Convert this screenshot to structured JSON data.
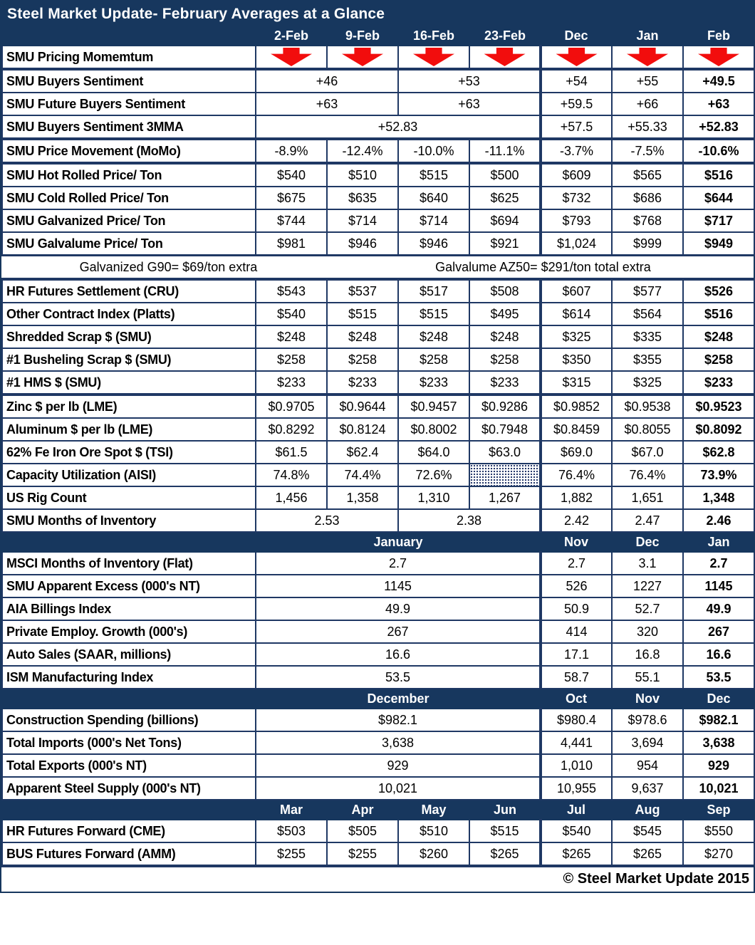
{
  "title": "Steel Market Update- February Averages at a Glance",
  "footer": "© Steel Market Update 2015",
  "colors": {
    "header_navy": "#17375E",
    "grid_border_navy": "#1F3864",
    "momentum_arrow_red": "#F20D0D",
    "text": "#000000",
    "background": "#FFFFFF"
  },
  "icons": {
    "momentum_arrow": "red-block-down-arrow"
  },
  "chart_data": {
    "type": "table",
    "title": "Steel Market Update- February Averages at a Glance",
    "weekly_columns": [
      "2-Feb",
      "9-Feb",
      "16-Feb",
      "23-Feb"
    ],
    "monthly_columns_top": [
      "Dec",
      "Jan",
      "Feb"
    ],
    "rows": [
      {
        "type": "months",
        "label": "",
        "cells": [
          {
            "v": "2-Feb"
          },
          {
            "v": "9-Feb"
          },
          {
            "v": "16-Feb"
          },
          {
            "v": "23-Feb"
          },
          {
            "v": "Dec"
          },
          {
            "v": "Jan"
          },
          {
            "v": "Feb"
          }
        ]
      },
      {
        "type": "arrows",
        "label": "SMU Pricing Momemtum",
        "cls": "thickb",
        "cells": [
          {},
          {},
          {},
          {},
          {},
          {},
          {}
        ]
      },
      {
        "type": "data",
        "label": "SMU Buyers Sentiment",
        "cells": [
          {
            "v": "+46",
            "s": 2
          },
          {
            "v": "+53",
            "s": 2
          },
          {
            "v": "+54"
          },
          {
            "v": "+55"
          },
          {
            "v": "+49.5",
            "b": 1
          }
        ]
      },
      {
        "type": "data",
        "label": "SMU Future Buyers Sentiment",
        "cells": [
          {
            "v": "+63",
            "s": 2
          },
          {
            "v": "+63",
            "s": 2
          },
          {
            "v": "+59.5"
          },
          {
            "v": "+66"
          },
          {
            "v": "+63",
            "b": 1
          }
        ]
      },
      {
        "type": "data",
        "label": "SMU Buyers Sentiment 3MMA",
        "cls": "thickb",
        "cells": [
          {
            "v": "+52.83",
            "s": 4
          },
          {
            "v": "+57.5"
          },
          {
            "v": "+55.33"
          },
          {
            "v": "+52.83",
            "b": 1
          }
        ]
      },
      {
        "type": "data",
        "label": "SMU Price Movement (MoMo)",
        "cls": "thickb",
        "cells": [
          {
            "v": "-8.9%"
          },
          {
            "v": "-12.4%"
          },
          {
            "v": "-10.0%"
          },
          {
            "v": "-11.1%"
          },
          {
            "v": "-3.7%"
          },
          {
            "v": "-7.5%"
          },
          {
            "v": "-10.6%",
            "b": 1
          }
        ]
      },
      {
        "type": "data",
        "label": "SMU Hot Rolled Price/ Ton",
        "cells": [
          {
            "v": "$540"
          },
          {
            "v": "$510"
          },
          {
            "v": "$515"
          },
          {
            "v": "$500"
          },
          {
            "v": "$609"
          },
          {
            "v": "$565"
          },
          {
            "v": "$516",
            "b": 1
          }
        ]
      },
      {
        "type": "data",
        "label": "SMU Cold Rolled Price/ Ton",
        "cells": [
          {
            "v": "$675"
          },
          {
            "v": "$635"
          },
          {
            "v": "$640"
          },
          {
            "v": "$625"
          },
          {
            "v": "$732"
          },
          {
            "v": "$686"
          },
          {
            "v": "$644",
            "b": 1
          }
        ]
      },
      {
        "type": "data",
        "label": "SMU Galvanized Price/ Ton",
        "cells": [
          {
            "v": "$744"
          },
          {
            "v": "$714"
          },
          {
            "v": "$714"
          },
          {
            "v": "$694"
          },
          {
            "v": "$793"
          },
          {
            "v": "$768"
          },
          {
            "v": "$717",
            "b": 1
          }
        ]
      },
      {
        "type": "data",
        "label": "SMU Galvalume Price/ Ton",
        "cells": [
          {
            "v": "$981"
          },
          {
            "v": "$946"
          },
          {
            "v": "$946"
          },
          {
            "v": "$921"
          },
          {
            "v": "$1,024"
          },
          {
            "v": "$999"
          },
          {
            "v": "$949",
            "b": 1
          }
        ]
      },
      {
        "type": "note",
        "texts": [
          "Galvanized G90= $69/ton extra",
          "Galvalume AZ50= $291/ton total extra"
        ]
      },
      {
        "type": "data",
        "label": "HR Futures Settlement (CRU)",
        "cells": [
          {
            "v": "$543"
          },
          {
            "v": "$537"
          },
          {
            "v": "$517"
          },
          {
            "v": "$508"
          },
          {
            "v": "$607"
          },
          {
            "v": "$577"
          },
          {
            "v": "$526",
            "b": 1
          }
        ]
      },
      {
        "type": "data",
        "label": "Other Contract Index (Platts)",
        "cells": [
          {
            "v": "$540"
          },
          {
            "v": "$515"
          },
          {
            "v": "$515"
          },
          {
            "v": "$495"
          },
          {
            "v": "$614"
          },
          {
            "v": "$564"
          },
          {
            "v": "$516",
            "b": 1
          }
        ]
      },
      {
        "type": "data",
        "label": "Shredded Scrap $ (SMU)",
        "cells": [
          {
            "v": "$248"
          },
          {
            "v": "$248"
          },
          {
            "v": "$248"
          },
          {
            "v": "$248"
          },
          {
            "v": "$325"
          },
          {
            "v": "$335"
          },
          {
            "v": "$248",
            "b": 1
          }
        ]
      },
      {
        "type": "data",
        "label": "#1 Busheling Scrap $ (SMU)",
        "cells": [
          {
            "v": "$258"
          },
          {
            "v": "$258"
          },
          {
            "v": "$258"
          },
          {
            "v": "$258"
          },
          {
            "v": "$350"
          },
          {
            "v": "$355"
          },
          {
            "v": "$258",
            "b": 1
          }
        ]
      },
      {
        "type": "data",
        "label": "#1 HMS $ (SMU)",
        "cells": [
          {
            "v": "$233"
          },
          {
            "v": "$233"
          },
          {
            "v": "$233"
          },
          {
            "v": "$233"
          },
          {
            "v": "$315"
          },
          {
            "v": "$325"
          },
          {
            "v": "$233",
            "b": 1
          }
        ]
      },
      {
        "type": "data",
        "label": "Zinc $ per lb (LME)",
        "cls": "thickt",
        "cells": [
          {
            "v": "$0.9705"
          },
          {
            "v": "$0.9644"
          },
          {
            "v": "$0.9457"
          },
          {
            "v": "$0.9286"
          },
          {
            "v": "$0.9852"
          },
          {
            "v": "$0.9538"
          },
          {
            "v": "$0.9523",
            "b": 1
          }
        ]
      },
      {
        "type": "data",
        "label": "Aluminum $ per lb (LME)",
        "cells": [
          {
            "v": "$0.8292"
          },
          {
            "v": "$0.8124"
          },
          {
            "v": "$0.8002"
          },
          {
            "v": "$0.7948"
          },
          {
            "v": "$0.8459"
          },
          {
            "v": "$0.8055"
          },
          {
            "v": "$0.8092",
            "b": 1
          }
        ]
      },
      {
        "type": "data",
        "label": "62% Fe Iron Ore Spot $ (TSI)",
        "cells": [
          {
            "v": "$61.5"
          },
          {
            "v": "$62.4"
          },
          {
            "v": "$64.0"
          },
          {
            "v": "$63.0"
          },
          {
            "v": "$69.0"
          },
          {
            "v": "$67.0"
          },
          {
            "v": "$62.8",
            "b": 1
          }
        ]
      },
      {
        "type": "data",
        "label": "Capacity Utilization (AISI)",
        "cells": [
          {
            "v": "74.8%"
          },
          {
            "v": "74.4%"
          },
          {
            "v": "72.6%"
          },
          {
            "h": 1
          },
          {
            "v": "76.4%"
          },
          {
            "v": "76.4%"
          },
          {
            "v": "73.9%",
            "b": 1
          }
        ]
      },
      {
        "type": "data",
        "label": "US Rig Count",
        "cells": [
          {
            "v": "1,456"
          },
          {
            "v": "1,358"
          },
          {
            "v": "1,310"
          },
          {
            "v": "1,267"
          },
          {
            "v": "1,882"
          },
          {
            "v": "1,651"
          },
          {
            "v": "1,348",
            "b": 1
          }
        ]
      },
      {
        "type": "data",
        "label": "SMU Months of Inventory",
        "cells": [
          {
            "v": "2.53",
            "s": 2
          },
          {
            "v": "2.38",
            "s": 2
          },
          {
            "v": "2.42"
          },
          {
            "v": "2.47"
          },
          {
            "v": "2.46",
            "b": 1
          }
        ]
      },
      {
        "type": "months",
        "label": "",
        "cells": [
          {
            "v": "January",
            "s": 4
          },
          {
            "v": "Nov"
          },
          {
            "v": "Dec"
          },
          {
            "v": "Jan"
          }
        ]
      },
      {
        "type": "data",
        "label": "MSCI Months of Inventory (Flat)",
        "cells": [
          {
            "v": "2.7",
            "s": 4
          },
          {
            "v": "2.7"
          },
          {
            "v": "3.1"
          },
          {
            "v": "2.7",
            "b": 1
          }
        ]
      },
      {
        "type": "data",
        "label": "SMU Apparent Excess (000's NT)",
        "cells": [
          {
            "v": "1145",
            "s": 4
          },
          {
            "v": "526"
          },
          {
            "v": "1227"
          },
          {
            "v": "1145",
            "b": 1
          }
        ]
      },
      {
        "type": "data",
        "label": "AIA Billings Index",
        "cells": [
          {
            "v": "49.9",
            "s": 4
          },
          {
            "v": "50.9"
          },
          {
            "v": "52.7"
          },
          {
            "v": "49.9",
            "b": 1
          }
        ]
      },
      {
        "type": "data",
        "label": "Private Employ. Growth (000's)",
        "cells": [
          {
            "v": "267",
            "s": 4
          },
          {
            "v": "414"
          },
          {
            "v": "320"
          },
          {
            "v": "267",
            "b": 1
          }
        ]
      },
      {
        "type": "data",
        "label": "Auto Sales (SAAR, millions)",
        "cells": [
          {
            "v": "16.6",
            "s": 4
          },
          {
            "v": "17.1"
          },
          {
            "v": "16.8"
          },
          {
            "v": "16.6",
            "b": 1
          }
        ]
      },
      {
        "type": "data",
        "label": "ISM Manufacturing Index",
        "cells": [
          {
            "v": "53.5",
            "s": 4
          },
          {
            "v": "58.7"
          },
          {
            "v": "55.1"
          },
          {
            "v": "53.5",
            "b": 1
          }
        ]
      },
      {
        "type": "months",
        "label": "",
        "cells": [
          {
            "v": "December",
            "s": 4
          },
          {
            "v": "Oct"
          },
          {
            "v": "Nov"
          },
          {
            "v": "Dec"
          }
        ]
      },
      {
        "type": "data",
        "label": "Construction Spending (billions)",
        "cells": [
          {
            "v": "$982.1",
            "s": 4
          },
          {
            "v": "$980.4"
          },
          {
            "v": "$978.6"
          },
          {
            "v": "$982.1",
            "b": 1
          }
        ]
      },
      {
        "type": "data",
        "label": "Total Imports (000's Net Tons)",
        "cells": [
          {
            "v": "3,638",
            "s": 4
          },
          {
            "v": "4,441"
          },
          {
            "v": "3,694"
          },
          {
            "v": "3,638",
            "b": 1
          }
        ]
      },
      {
        "type": "data",
        "label": "Total Exports (000's NT)",
        "cells": [
          {
            "v": "929",
            "s": 4
          },
          {
            "v": "1,010"
          },
          {
            "v": "954"
          },
          {
            "v": "929",
            "b": 1
          }
        ]
      },
      {
        "type": "data",
        "label": "Apparent Steel Supply (000's NT)",
        "cells": [
          {
            "v": "10,021",
            "s": 4
          },
          {
            "v": "10,955"
          },
          {
            "v": "9,637"
          },
          {
            "v": "10,021",
            "b": 1
          }
        ]
      },
      {
        "type": "months",
        "label": "",
        "cells": [
          {
            "v": "Mar"
          },
          {
            "v": "Apr"
          },
          {
            "v": "May"
          },
          {
            "v": "Jun"
          },
          {
            "v": "Jul"
          },
          {
            "v": "Aug"
          },
          {
            "v": "Sep"
          }
        ]
      },
      {
        "type": "data",
        "label": "HR Futures Forward (CME)",
        "cells": [
          {
            "v": "$503"
          },
          {
            "v": "$505"
          },
          {
            "v": "$510"
          },
          {
            "v": "$515"
          },
          {
            "v": "$540"
          },
          {
            "v": "$545"
          },
          {
            "v": "$550"
          }
        ]
      },
      {
        "type": "data",
        "label": "BUS Futures Forward (AMM)",
        "cells": [
          {
            "v": "$255"
          },
          {
            "v": "$255"
          },
          {
            "v": "$260"
          },
          {
            "v": "$265"
          },
          {
            "v": "$265"
          },
          {
            "v": "$265"
          },
          {
            "v": "$270"
          }
        ]
      }
    ]
  }
}
